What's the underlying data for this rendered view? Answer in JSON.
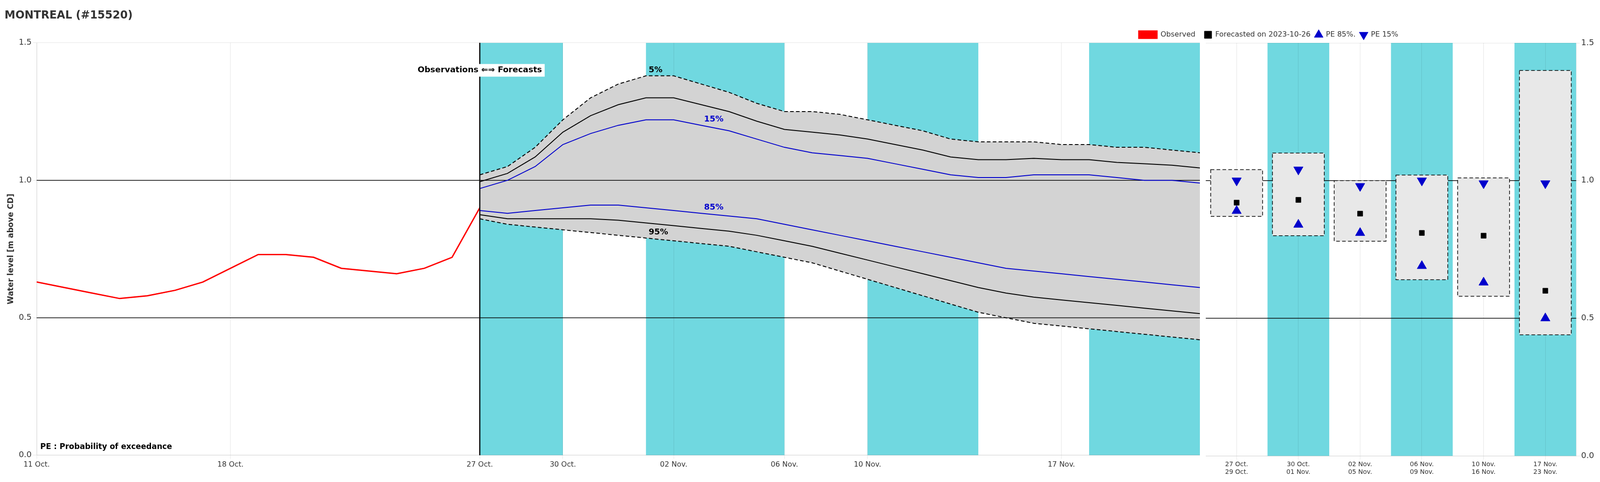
{
  "chart_data": [
    {
      "type": "line",
      "title": "MONTREAL (#15520)",
      "ylabel": "Water level [m above CD]",
      "xlim": [
        0,
        42
      ],
      "ylim": [
        0.0,
        1.5
      ],
      "xticks": [
        {
          "value": 0,
          "label": "11 Oct."
        },
        {
          "value": 7,
          "label": "18 Oct."
        },
        {
          "value": 16,
          "label": "27 Oct."
        },
        {
          "value": 19,
          "label": "30 Oct."
        },
        {
          "value": 23,
          "label": "02 Nov."
        },
        {
          "value": 27,
          "label": "06 Nov."
        },
        {
          "value": 30,
          "label": "10 Nov."
        },
        {
          "value": 37,
          "label": "17 Nov."
        }
      ],
      "yticks": [
        {
          "value": 0,
          "label": "0.0"
        },
        0.5,
        {
          "value": 1,
          "label": "1.0"
        },
        1.5
      ],
      "grid": true,
      "bands": [
        [
          16,
          19
        ],
        [
          22,
          27
        ],
        [
          30,
          34
        ],
        [
          38,
          42
        ]
      ],
      "band_color": "#70d8e0",
      "x_lines": [
        16
      ],
      "y_lines": [
        0.5,
        1.0
      ],
      "series": [
        {
          "color": "#000000",
          "line_style": "dashed",
          "x": [
            16,
            17,
            18,
            19,
            20,
            21,
            22,
            23,
            24,
            25,
            26,
            27,
            28,
            29,
            30,
            31,
            32,
            33,
            34,
            35,
            36,
            37,
            38,
            39,
            40,
            41,
            42
          ],
          "values": [
            1.02,
            1.05,
            1.12,
            1.22,
            1.3,
            1.35,
            1.38,
            1.38,
            1.35,
            1.32,
            1.28,
            1.25,
            1.25,
            1.24,
            1.22,
            1.2,
            1.18,
            1.15,
            1.14,
            1.14,
            1.14,
            1.13,
            1.13,
            1.12,
            1.12,
            1.11,
            1.1
          ]
        },
        {
          "color": "#000000",
          "line_style": "dashed",
          "fill_color": "#d3d3d3",
          "x": [
            16,
            17,
            18,
            19,
            20,
            21,
            22,
            23,
            24,
            25,
            26,
            27,
            28,
            29,
            30,
            31,
            32,
            33,
            34,
            35,
            36,
            37,
            38,
            39,
            40,
            41,
            42
          ],
          "values": [
            0.86,
            0.84,
            0.83,
            0.82,
            0.81,
            0.8,
            0.79,
            0.78,
            0.77,
            0.76,
            0.74,
            0.72,
            0.7,
            0.67,
            0.64,
            0.61,
            0.58,
            0.55,
            0.52,
            0.5,
            0.48,
            0.47,
            0.46,
            0.45,
            0.44,
            0.43,
            0.42
          ]
        },
        {
          "color": "#000000",
          "line_style": "solid",
          "x": [
            16,
            17,
            18,
            19,
            20,
            21,
            22,
            23,
            24,
            25,
            26,
            27,
            28,
            29,
            30,
            31,
            32,
            33,
            34,
            35,
            36,
            37,
            38,
            39,
            40,
            41,
            42
          ],
          "values": [
            0.995,
            1.025,
            1.085,
            1.175,
            1.235,
            1.275,
            1.3,
            1.3,
            1.275,
            1.25,
            1.215,
            1.185,
            1.175,
            1.165,
            1.15,
            1.13,
            1.11,
            1.085,
            1.075,
            1.075,
            1.08,
            1.075,
            1.075,
            1.065,
            1.06,
            1.055,
            1.045
          ]
        },
        {
          "color": "#000000",
          "line_style": "solid",
          "x": [
            16,
            17,
            18,
            19,
            20,
            21,
            22,
            23,
            24,
            25,
            26,
            27,
            28,
            29,
            30,
            31,
            32,
            33,
            34,
            35,
            36,
            37,
            38,
            39,
            40,
            41,
            42
          ],
          "values": [
            0.875,
            0.86,
            0.86,
            0.86,
            0.86,
            0.855,
            0.845,
            0.835,
            0.825,
            0.815,
            0.8,
            0.78,
            0.76,
            0.735,
            0.71,
            0.685,
            0.66,
            0.635,
            0.61,
            0.59,
            0.575,
            0.565,
            0.555,
            0.545,
            0.535,
            0.525,
            0.515
          ]
        },
        {
          "color": "#0000cc",
          "line_style": "solid",
          "x": [
            16,
            17,
            18,
            19,
            20,
            21,
            22,
            23,
            24,
            25,
            26,
            27,
            28,
            29,
            30,
            31,
            32,
            33,
            34,
            35,
            36,
            37,
            38,
            39,
            40,
            41,
            42
          ],
          "values": [
            0.97,
            1.0,
            1.05,
            1.13,
            1.17,
            1.2,
            1.22,
            1.22,
            1.2,
            1.18,
            1.15,
            1.12,
            1.1,
            1.09,
            1.08,
            1.06,
            1.04,
            1.02,
            1.01,
            1.01,
            1.02,
            1.02,
            1.02,
            1.01,
            1.0,
            1.0,
            0.99
          ]
        },
        {
          "color": "#0000cc",
          "line_style": "solid",
          "x": [
            16,
            17,
            18,
            19,
            20,
            21,
            22,
            23,
            24,
            25,
            26,
            27,
            28,
            29,
            30,
            31,
            32,
            33,
            34,
            35,
            36,
            37,
            38,
            39,
            40,
            41,
            42
          ],
          "values": [
            0.89,
            0.88,
            0.89,
            0.9,
            0.91,
            0.91,
            0.9,
            0.89,
            0.88,
            0.87,
            0.86,
            0.84,
            0.82,
            0.8,
            0.78,
            0.76,
            0.74,
            0.72,
            0.7,
            0.68,
            0.67,
            0.66,
            0.65,
            0.64,
            0.63,
            0.62,
            0.61
          ]
        },
        {
          "name": "Observed",
          "color": "#ff0000",
          "line_style": "solid",
          "x": [
            0,
            1,
            2,
            3,
            4,
            5,
            6,
            7,
            8,
            9,
            10,
            11,
            12,
            13,
            14,
            15,
            16
          ],
          "values": [
            0.63,
            0.61,
            0.59,
            0.57,
            0.58,
            0.6,
            0.63,
            0.68,
            0.73,
            0.73,
            0.72,
            0.68,
            0.67,
            0.66,
            0.68,
            0.72,
            0.9
          ]
        }
      ],
      "annotations": [
        {
          "text": "5%",
          "x": 22,
          "y": 1.38,
          "color": "#000000"
        },
        {
          "text": "15%",
          "x": 24,
          "y": 1.2,
          "color": "#0000cc"
        },
        {
          "text": "85%",
          "x": 24,
          "y": 0.88,
          "color": "#0000cc"
        },
        {
          "text": "95%",
          "x": 22,
          "y": 0.79,
          "color": "#000000"
        },
        {
          "text": "Observations ⇐⇒ Forecasts",
          "x": 16,
          "y": 1.4
        },
        {
          "text": "PE : Probability of exceedance"
        }
      ]
    },
    {
      "type": "bar",
      "categories": [
        "27 Oct.\n29 Oct.",
        "30 Oct.\n01 Nov.",
        "02 Nov.\n05 Nov.",
        "06 Nov.\n09 Nov.",
        "10 Nov.\n16 Nov.",
        "17 Nov.\n23 Nov."
      ],
      "ylim": [
        0.0,
        1.5
      ],
      "yticks": [
        {
          "value": 0,
          "label": "0.0"
        },
        0.5,
        {
          "value": 1,
          "label": "1.0"
        },
        1.5
      ],
      "grid": true,
      "band_color": "#70d8e0",
      "shaded": [
        false,
        true,
        false,
        true,
        false,
        true
      ],
      "y_lines": [
        0.5,
        1.0
      ],
      "series": [
        {
          "type": "bar",
          "color": "#e8e8e8",
          "line_style": "dashed",
          "values": [
            [
              0.87,
              1.04
            ],
            [
              0.8,
              1.1
            ],
            [
              0.78,
              1.0
            ],
            [
              0.64,
              1.02
            ],
            [
              0.58,
              1.01
            ],
            [
              0.44,
              1.4
            ]
          ]
        },
        {
          "name": "Forecasted on 2023-10-26",
          "type": "scatter",
          "marker": "square",
          "color": "#000000",
          "values": [
            0.92,
            0.93,
            0.88,
            0.81,
            0.8,
            0.6
          ]
        },
        {
          "name": "PE 85%.",
          "type": "scatter",
          "marker": "triangle_up",
          "color": "#0000cc",
          "values": [
            0.89,
            0.84,
            0.81,
            0.69,
            0.63,
            0.5
          ]
        },
        {
          "name": "PE 15%",
          "type": "scatter",
          "marker": "triangle_down",
          "color": "#0000cc",
          "values": [
            1.0,
            1.04,
            0.98,
            1.0,
            0.99,
            0.99
          ]
        }
      ]
    }
  ]
}
